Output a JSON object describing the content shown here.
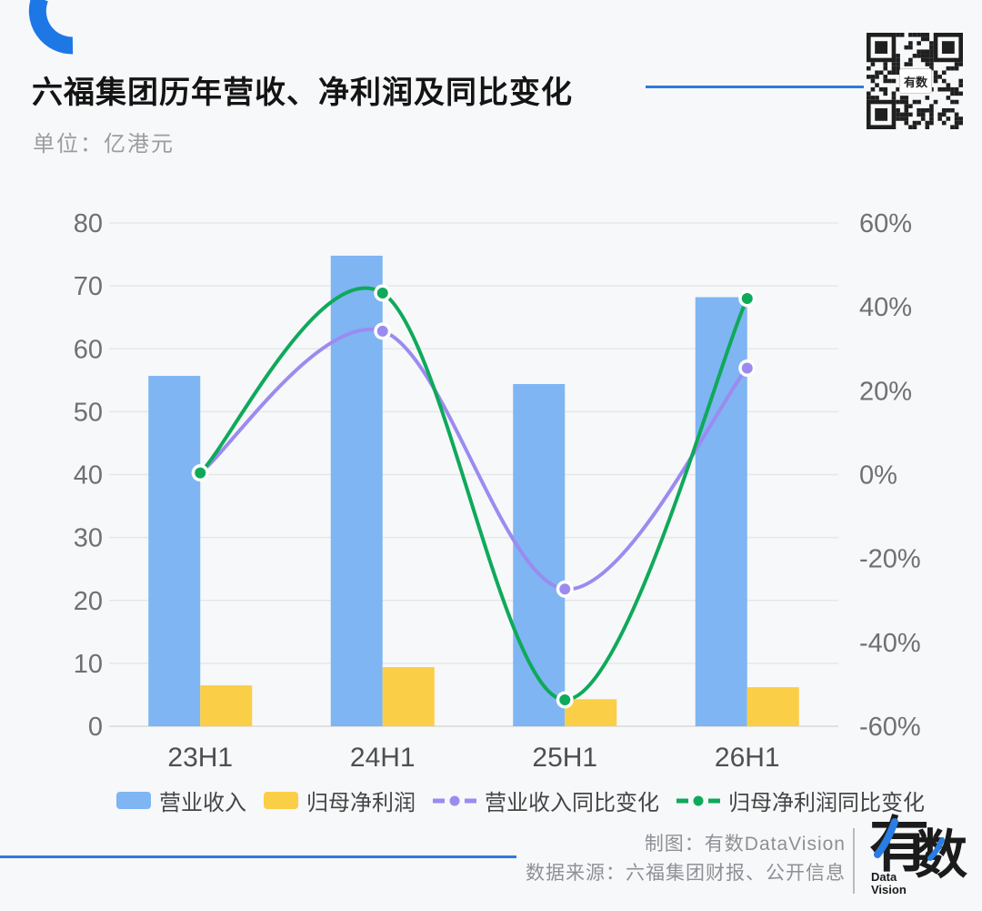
{
  "header": {
    "title": "六福集团历年营收、净利润及同比变化",
    "subtitle": "单位：亿港元",
    "accent_color": "#2e7bd9",
    "qr_center_label": "有数"
  },
  "chart_data": {
    "type": "bar+line-dual-axis",
    "categories": [
      "23H1",
      "24H1",
      "25H1",
      "26H1"
    ],
    "bar_series": [
      {
        "name": "营业收入",
        "axis": "left",
        "color": "#7fb5f3",
        "values": [
          55.7,
          74.8,
          54.4,
          68.2
        ]
      },
      {
        "name": "归母净利润",
        "axis": "left",
        "color": "#fbce47",
        "values": [
          6.5,
          9.4,
          4.3,
          6.2
        ]
      }
    ],
    "line_series": [
      {
        "name": "营业收入同比变化",
        "axis": "right",
        "color": "#9b8bf0",
        "values_pct": [
          0.4,
          34.2,
          -27.3,
          25.4
        ]
      },
      {
        "name": "归母净利润同比变化",
        "axis": "right",
        "color": "#0fa95b",
        "values_pct": [
          0.4,
          43.3,
          -53.7,
          42.0
        ]
      }
    ],
    "left_axis": {
      "min": 0,
      "max": 80,
      "step": 10,
      "tick_labels": [
        "80",
        "70",
        "60",
        "50",
        "40",
        "30",
        "20",
        "10",
        "0"
      ]
    },
    "right_axis": {
      "min": -60,
      "max": 60,
      "step": 20,
      "tick_labels": [
        "60%",
        "40%",
        "20%",
        "0%",
        "-20%",
        "-40%",
        "-60%"
      ]
    },
    "grid": true,
    "legend_position": "bottom",
    "styles": {
      "grid_color": "#e6e7e9",
      "zero_line_color": "#d8d9db",
      "tick_label_color": "#6f7control173",
      "axis_label_color": "#6f7073",
      "category_label_color": "#4d4f52"
    }
  },
  "footer": {
    "credit": "制图：有数DataVision",
    "source": "数据来源：六福集团财报、公开信息",
    "logo_main_char1": "有",
    "logo_main_char2": "数",
    "logo_sub_line1": "Data",
    "logo_sub_line2": "Vision"
  }
}
